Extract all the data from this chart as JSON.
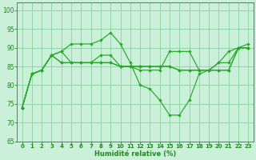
{
  "xlabel": "Humidité relative (%)",
  "xlim": [
    -0.5,
    23.5
  ],
  "ylim": [
    65,
    102
  ],
  "yticks": [
    65,
    70,
    75,
    80,
    85,
    90,
    95,
    100
  ],
  "xticks": [
    0,
    1,
    2,
    3,
    4,
    5,
    6,
    7,
    8,
    9,
    10,
    11,
    12,
    13,
    14,
    15,
    16,
    17,
    18,
    19,
    20,
    21,
    22,
    23
  ],
  "bg_color": "#caf0da",
  "grid_color": "#80c896",
  "line_color": "#22aa22",
  "series": [
    [
      74,
      83,
      84,
      88,
      89,
      91,
      91,
      91,
      92,
      94,
      91,
      86,
      80,
      79,
      76,
      72,
      72,
      76,
      83,
      84,
      86,
      89,
      90,
      91
    ],
    [
      74,
      83,
      84,
      88,
      89,
      86,
      86,
      86,
      88,
      88,
      85,
      85,
      84,
      84,
      84,
      89,
      89,
      89,
      84,
      84,
      84,
      84,
      90,
      90
    ],
    [
      74,
      83,
      84,
      88,
      86,
      86,
      86,
      86,
      86,
      86,
      85,
      85,
      85,
      85,
      85,
      85,
      84,
      84,
      84,
      84,
      84,
      84,
      90,
      90
    ],
    [
      74,
      83,
      84,
      88,
      86,
      86,
      86,
      86,
      86,
      86,
      85,
      85,
      85,
      85,
      85,
      85,
      84,
      84,
      84,
      84,
      86,
      86,
      90,
      90
    ]
  ],
  "figsize": [
    3.2,
    2.0
  ],
  "dpi": 100
}
